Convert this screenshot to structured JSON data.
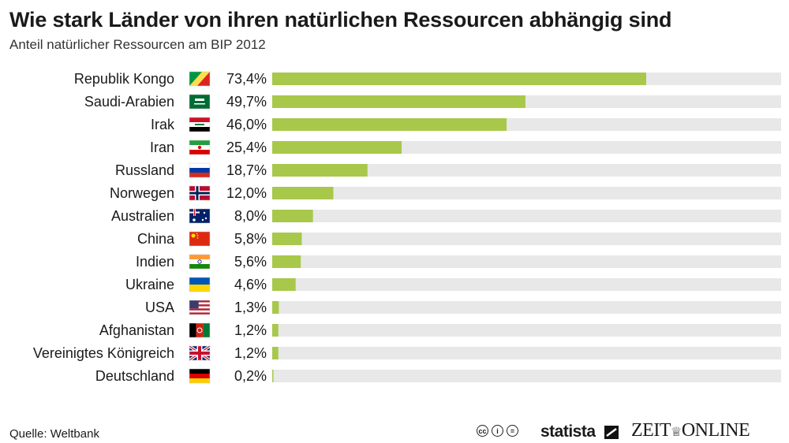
{
  "header": {
    "title": "Wie stark Länder von ihren natürlichen Ressourcen abhängig sind",
    "subtitle": "Anteil natürlicher Ressourcen am BIP 2012"
  },
  "footer": {
    "source": "Quelle: Weltbank",
    "brand_statista": "statista",
    "brand_zeit": "ZEIT",
    "brand_online": "ONLINE",
    "license_icons": [
      "cc-icon",
      "by-icon",
      "nd-icon"
    ]
  },
  "chart_data": {
    "type": "bar",
    "orientation": "horizontal",
    "title": "Wie stark Länder von ihren natürlichen Ressourcen abhängig sind",
    "subtitle": "Anteil natürlicher Ressourcen am BIP 2012",
    "categories": [
      "Republik Kongo",
      "Saudi-Arabien",
      "Irak",
      "Iran",
      "Russland",
      "Norwegen",
      "Australien",
      "China",
      "Indien",
      "Ukraine",
      "USA",
      "Afghanistan",
      "Vereinigtes Königreich",
      "Deutschland"
    ],
    "values": [
      73.4,
      49.7,
      46.0,
      25.4,
      18.7,
      12.0,
      8.0,
      5.8,
      5.6,
      4.6,
      1.3,
      1.2,
      1.2,
      0.2
    ],
    "labels": [
      "73,4%",
      "49,7%",
      "46,0%",
      "25,4%",
      "18,7%",
      "12,0%",
      "8,0%",
      "5,8%",
      "5,6%",
      "4,6%",
      "1,3%",
      "1,2%",
      "1,2%",
      "0,2%"
    ],
    "flags": [
      "congo-flag-icon",
      "saudi-arabia-flag-icon",
      "iraq-flag-icon",
      "iran-flag-icon",
      "russia-flag-icon",
      "norway-flag-icon",
      "australia-flag-icon",
      "china-flag-icon",
      "india-flag-icon",
      "ukraine-flag-icon",
      "usa-flag-icon",
      "afghanistan-flag-icon",
      "uk-flag-icon",
      "germany-flag-icon"
    ],
    "xlim": [
      0,
      100
    ],
    "bar_color": "#a8c84b",
    "track_color": "#e8e8e8",
    "unit": "%"
  }
}
